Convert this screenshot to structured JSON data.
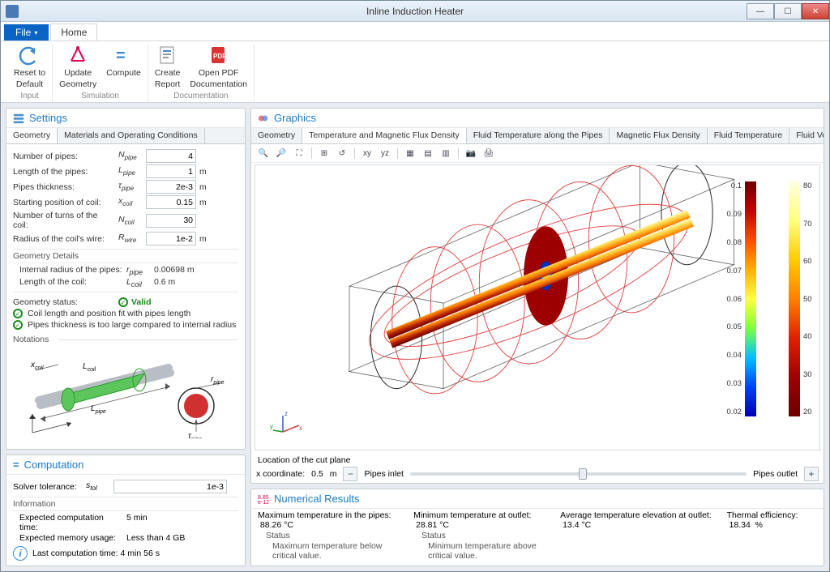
{
  "window": {
    "title": "Inline Induction Heater"
  },
  "menu": {
    "file": "File",
    "home": "Home"
  },
  "ribbon": {
    "groups": [
      {
        "label": "Input",
        "buttons": [
          {
            "name": "reset-to-default-button",
            "label1": "Reset to",
            "label2": "Default",
            "icon": "undo"
          }
        ]
      },
      {
        "label": "Simulation",
        "buttons": [
          {
            "name": "update-geometry-button",
            "label1": "Update",
            "label2": "Geometry",
            "icon": "geom"
          },
          {
            "name": "compute-button",
            "label1": "Compute",
            "label2": "",
            "icon": "compute"
          }
        ]
      },
      {
        "label": "Documentation",
        "buttons": [
          {
            "name": "create-report-button",
            "label1": "Create",
            "label2": "Report",
            "icon": "report"
          },
          {
            "name": "open-pdf-button",
            "label1": "Open PDF",
            "label2": "Documentation",
            "icon": "pdf"
          }
        ]
      }
    ]
  },
  "settings": {
    "title": "Settings",
    "tabs": [
      "Geometry",
      "Materials and Operating Conditions"
    ],
    "active_tab": 0,
    "params": [
      {
        "label": "Number of pipes:",
        "sym": "N",
        "sub": "pipe",
        "value": "4",
        "unit": ""
      },
      {
        "label": "Length of the pipes:",
        "sym": "L",
        "sub": "pipe",
        "value": "1",
        "unit": "m"
      },
      {
        "label": "Pipes thickness:",
        "sym": "τ",
        "sub": "pipe",
        "value": "2e-3",
        "unit": "m"
      },
      {
        "label": "Starting position of coil:",
        "sym": "x",
        "sub": "coil",
        "value": "0.15",
        "unit": "m"
      },
      {
        "label": "Number of turns of the coil:",
        "sym": "N",
        "sub": "coil",
        "value": "30",
        "unit": ""
      },
      {
        "label": "Radius of the coil's wire:",
        "sym": "R",
        "sub": "wire",
        "value": "1e-2",
        "unit": "m"
      }
    ],
    "details_header": "Geometry Details",
    "details": [
      {
        "label": "Internal radius of the pipes:",
        "sym": "r",
        "sub": "pipe",
        "value": "0.00698 m"
      },
      {
        "label": "Length of the coil:",
        "sym": "L",
        "sub": "coil",
        "value": "0.6 m"
      }
    ],
    "status_label": "Geometry status:",
    "status_value": "Valid",
    "checks": [
      "Coil length and position fit with pipes length",
      "Pipes thickness is too large compared to internal radius"
    ],
    "notations_label": "Notations",
    "notation_labels": {
      "xcoil": "x",
      "xcoil_sub": "coil",
      "Lcoil": "L",
      "Lcoil_sub": "coil",
      "Lpipe": "L",
      "Lpipe_sub": "pipe",
      "rpipe": "r",
      "rpipe_sub": "pipe",
      "taupipe": "τ",
      "taupipe_sub": "pipe"
    }
  },
  "computation": {
    "title": "Computation",
    "tol_label": "Solver tolerance:",
    "tol_sym": "s",
    "tol_sub": "tol",
    "tol_value": "1e-3",
    "info_header": "Information",
    "exp_time_label": "Expected computation time:",
    "exp_time_value": "5 min",
    "exp_mem_label": "Expected memory usage:",
    "exp_mem_value": "Less than 4 GB",
    "last_time_label": "Last computation time: 4 min 56 s"
  },
  "graphics": {
    "title": "Graphics",
    "tabs": [
      "Geometry",
      "Temperature and Magnetic Flux Density",
      "Fluid Temperature along the Pipes",
      "Magnetic Flux Density",
      "Fluid Temperature",
      "Fluid Velocity Magnitude"
    ],
    "active_tab": 1,
    "axes": {
      "y": "y",
      "z": "z",
      "x": "x"
    },
    "colorbar1": {
      "ticks": [
        "0.1",
        "0.09",
        "0.08",
        "0.07",
        "0.06",
        "0.05",
        "0.04",
        "0.03",
        "0.02"
      ],
      "gradient": "linear-gradient(#6b0000,#c40000,#ff4d00,#ffb000,#ffff40,#7fff40,#00c0ff,#0040ff,#0000b0)"
    },
    "colorbar2": {
      "ticks": [
        "80",
        "70",
        "60",
        "50",
        "40",
        "30",
        "20"
      ],
      "gradient": "linear-gradient(#ffffe0,#ffff80,#ffcc00,#ff8000,#e02000,#a00000,#6b0000)"
    },
    "cutplane": {
      "label": "Location of the cut plane",
      "coord_label": "x coordinate:",
      "coord_value": "0.5",
      "coord_unit": "m",
      "left": "Pipes inlet",
      "right": "Pipes outlet",
      "slider_pos": 0.5
    }
  },
  "numres": {
    "title": "Numerical Results",
    "items": [
      {
        "label": "Maximum temperature in the pipes:",
        "value": "88.26 °C",
        "status_h": "Status",
        "status": "Maximum temperature below critical value."
      },
      {
        "label": "Minimum temperature at outlet:",
        "value": "28.81 °C",
        "status_h": "Status",
        "status": "Minimum temperature above critical value."
      },
      {
        "label": "Average temperature elevation at outlet:",
        "value": "13.4 °C"
      },
      {
        "label": "Thermal efficiency:",
        "value": "18.34",
        "unit": "%"
      }
    ]
  },
  "colors": {
    "accent": "#1a7ac4",
    "green": "#1a9a1a"
  }
}
